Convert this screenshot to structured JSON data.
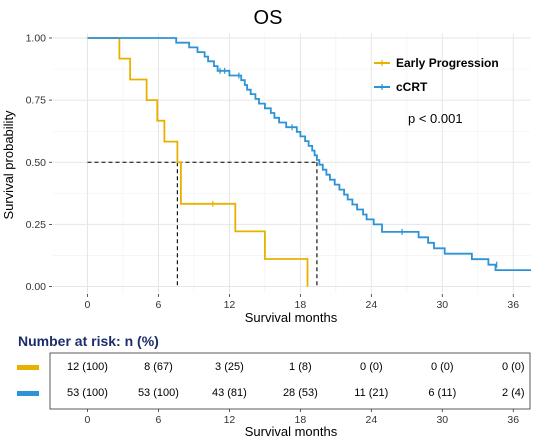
{
  "chart_data": [
    {
      "type": "survival",
      "title": "OS",
      "xlabel": "Survival months",
      "ylabel": "Survival probability",
      "xlim": [
        -3,
        37.5
      ],
      "ylim": [
        -0.03,
        1.02
      ],
      "x_ticks": [
        0,
        6,
        12,
        18,
        24,
        30,
        36
      ],
      "y_ticks": [
        0.0,
        0.25,
        0.5,
        0.75,
        1.0
      ],
      "y_tick_labels": [
        "0.00",
        "0.25",
        "0.50",
        "0.75",
        "1.00"
      ],
      "grid": true,
      "annotation": "p < 0.001",
      "median_lines": [
        {
          "series": "Early Progression",
          "median_x": 7.6,
          "y": 0.5
        },
        {
          "series": "cCRT",
          "median_x": 19.4,
          "y": 0.5
        }
      ],
      "series": [
        {
          "name": "Early Progression",
          "color": "#e8b100",
          "steps": [
            [
              0,
              1.0
            ],
            [
              2.7,
              1.0
            ],
            [
              2.7,
              0.917
            ],
            [
              3.6,
              0.917
            ],
            [
              3.6,
              0.833
            ],
            [
              5.0,
              0.833
            ],
            [
              5.0,
              0.75
            ],
            [
              5.9,
              0.75
            ],
            [
              5.9,
              0.667
            ],
            [
              6.5,
              0.667
            ],
            [
              6.5,
              0.583
            ],
            [
              7.6,
              0.583
            ],
            [
              7.6,
              0.5
            ],
            [
              7.9,
              0.5
            ],
            [
              7.9,
              0.333
            ],
            [
              12.5,
              0.333
            ],
            [
              12.5,
              0.222
            ],
            [
              15.0,
              0.222
            ],
            [
              15.0,
              0.111
            ],
            [
              18.6,
              0.111
            ],
            [
              18.6,
              0.0
            ]
          ],
          "censors": [
            [
              10.6,
              0.333
            ]
          ]
        },
        {
          "name": "cCRT",
          "color": "#2b93d6",
          "steps": [
            [
              0,
              1.0
            ],
            [
              7.5,
              1.0
            ],
            [
              7.5,
              0.981
            ],
            [
              8.6,
              0.981
            ],
            [
              8.6,
              0.962
            ],
            [
              9.3,
              0.962
            ],
            [
              9.3,
              0.943
            ],
            [
              9.9,
              0.943
            ],
            [
              9.9,
              0.925
            ],
            [
              10.2,
              0.925
            ],
            [
              10.2,
              0.906
            ],
            [
              10.7,
              0.906
            ],
            [
              10.7,
              0.887
            ],
            [
              11.0,
              0.887
            ],
            [
              11.0,
              0.868
            ],
            [
              12.0,
              0.868
            ],
            [
              12.0,
              0.849
            ],
            [
              13.0,
              0.849
            ],
            [
              13.0,
              0.83
            ],
            [
              13.3,
              0.83
            ],
            [
              13.3,
              0.811
            ],
            [
              13.5,
              0.811
            ],
            [
              13.5,
              0.792
            ],
            [
              13.8,
              0.792
            ],
            [
              13.8,
              0.774
            ],
            [
              14.2,
              0.774
            ],
            [
              14.2,
              0.755
            ],
            [
              14.5,
              0.755
            ],
            [
              14.5,
              0.736
            ],
            [
              15.0,
              0.736
            ],
            [
              15.0,
              0.717
            ],
            [
              15.5,
              0.717
            ],
            [
              15.5,
              0.698
            ],
            [
              15.8,
              0.698
            ],
            [
              15.8,
              0.679
            ],
            [
              16.2,
              0.679
            ],
            [
              16.2,
              0.66
            ],
            [
              16.8,
              0.66
            ],
            [
              16.8,
              0.641
            ],
            [
              17.7,
              0.641
            ],
            [
              17.7,
              0.622
            ],
            [
              18.0,
              0.622
            ],
            [
              18.0,
              0.604
            ],
            [
              18.4,
              0.604
            ],
            [
              18.4,
              0.585
            ],
            [
              18.7,
              0.585
            ],
            [
              18.7,
              0.566
            ],
            [
              19.0,
              0.566
            ],
            [
              19.0,
              0.547
            ],
            [
              19.2,
              0.547
            ],
            [
              19.2,
              0.528
            ],
            [
              19.4,
              0.528
            ],
            [
              19.4,
              0.509
            ],
            [
              19.6,
              0.509
            ],
            [
              19.6,
              0.49
            ],
            [
              19.9,
              0.49
            ],
            [
              19.9,
              0.47
            ],
            [
              20.2,
              0.47
            ],
            [
              20.2,
              0.45
            ],
            [
              20.5,
              0.45
            ],
            [
              20.5,
              0.43
            ],
            [
              20.9,
              0.43
            ],
            [
              20.9,
              0.41
            ],
            [
              21.3,
              0.41
            ],
            [
              21.3,
              0.39
            ],
            [
              21.7,
              0.39
            ],
            [
              21.7,
              0.37
            ],
            [
              22.0,
              0.37
            ],
            [
              22.0,
              0.35
            ],
            [
              22.4,
              0.35
            ],
            [
              22.4,
              0.33
            ],
            [
              22.8,
              0.33
            ],
            [
              22.8,
              0.31
            ],
            [
              23.3,
              0.31
            ],
            [
              23.3,
              0.29
            ],
            [
              23.6,
              0.29
            ],
            [
              23.6,
              0.27
            ],
            [
              24.2,
              0.27
            ],
            [
              24.2,
              0.25
            ],
            [
              24.9,
              0.25
            ],
            [
              24.9,
              0.22
            ],
            [
              28.0,
              0.22
            ],
            [
              28.0,
              0.198
            ],
            [
              28.8,
              0.198
            ],
            [
              28.8,
              0.176
            ],
            [
              29.3,
              0.176
            ],
            [
              29.3,
              0.154
            ],
            [
              30.2,
              0.154
            ],
            [
              30.2,
              0.132
            ],
            [
              32.5,
              0.132
            ],
            [
              32.5,
              0.11
            ],
            [
              33.9,
              0.11
            ],
            [
              33.9,
              0.088
            ],
            [
              34.5,
              0.088
            ],
            [
              34.5,
              0.066
            ],
            [
              37.5,
              0.066
            ]
          ],
          "censors": [
            [
              11.2,
              0.868
            ],
            [
              11.6,
              0.868
            ],
            [
              12.8,
              0.849
            ],
            [
              17.3,
              0.641
            ],
            [
              26.6,
              0.22
            ],
            [
              34.6,
              0.088
            ]
          ]
        }
      ]
    },
    {
      "type": "table",
      "title": "Number at risk: n (%)",
      "xlabel": "Survival months",
      "x_ticks": [
        0,
        6,
        12,
        18,
        24,
        30,
        36
      ],
      "rows": [
        {
          "series": "Early Progression",
          "color": "#e8b100",
          "values": [
            "12 (100)",
            "8 (67)",
            "3 (25)",
            "1 (8)",
            "0 (0)",
            "0 (0)",
            "0 (0)"
          ]
        },
        {
          "series": "cCRT",
          "color": "#2b93d6",
          "values": [
            "53 (100)",
            "53 (100)",
            "43 (81)",
            "28 (53)",
            "11 (21)",
            "6 (11)",
            "2 (4)"
          ]
        }
      ]
    }
  ]
}
